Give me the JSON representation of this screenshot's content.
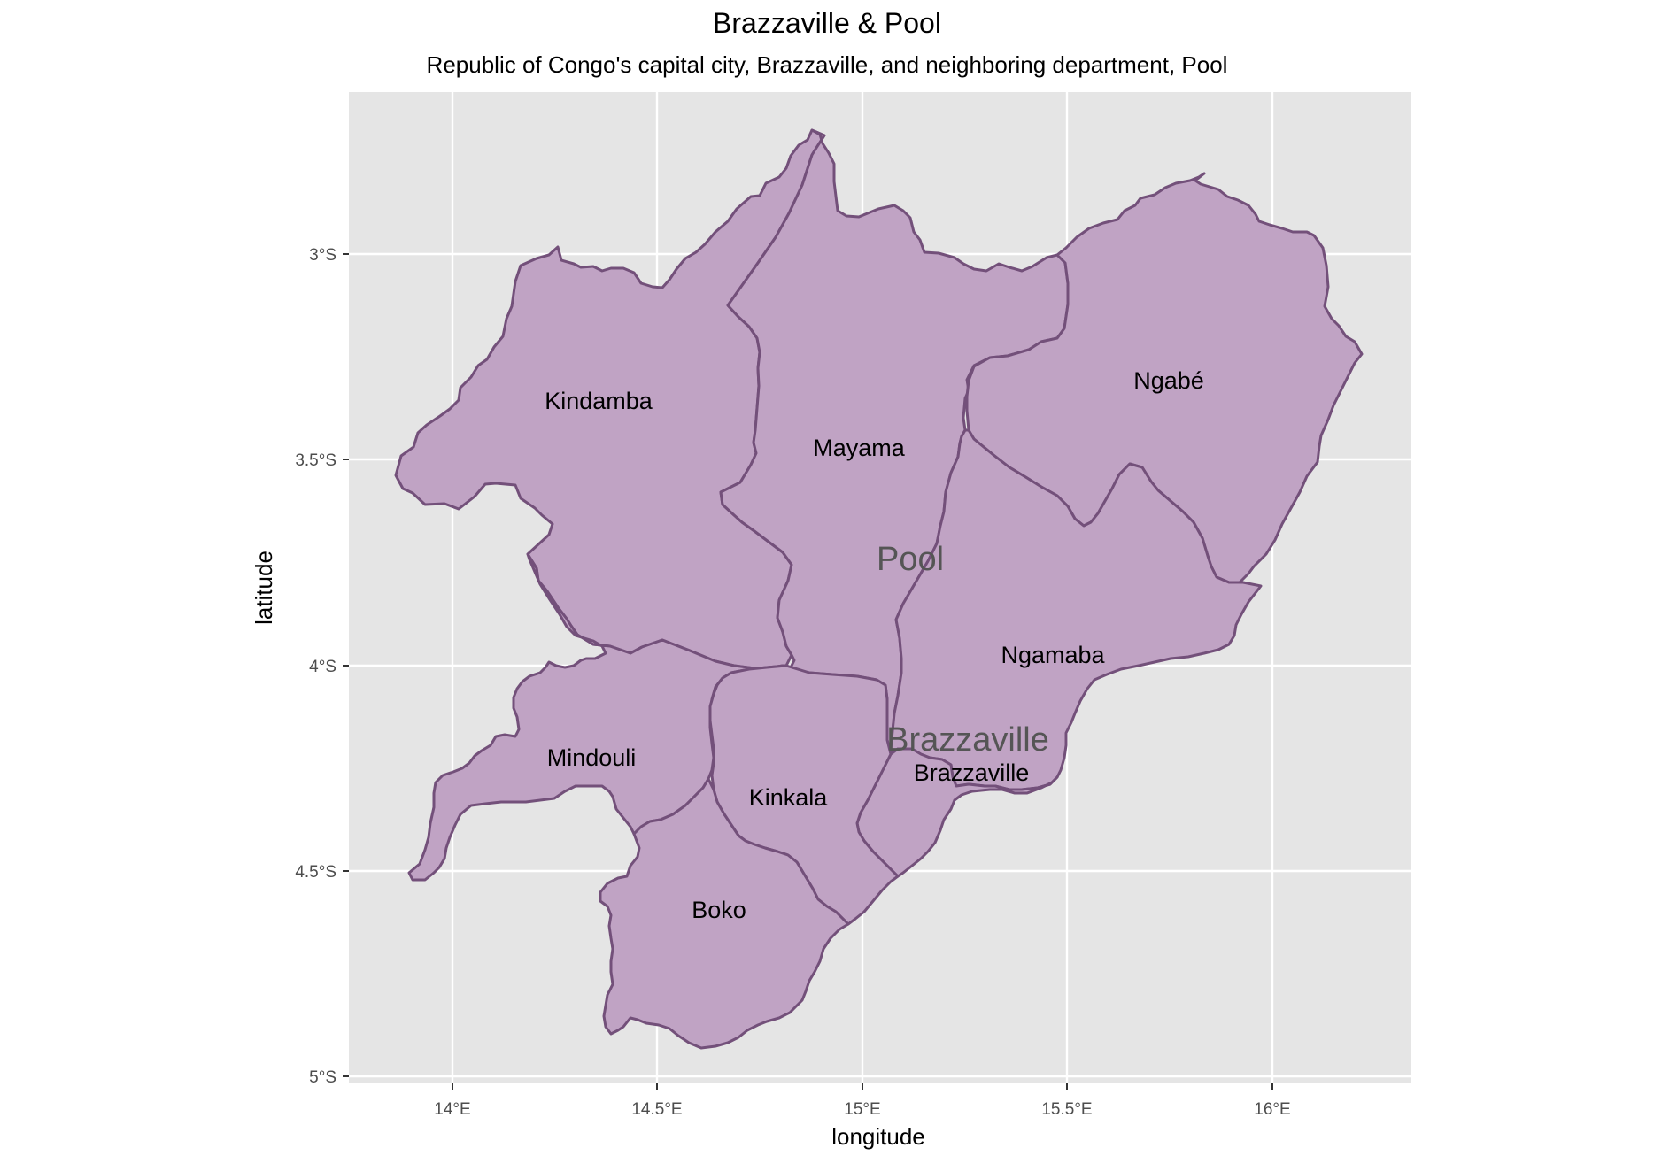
{
  "title": "Brazzaville & Pool",
  "subtitle": "Republic of Congo's capital city, Brazzaville, and neighboring department, Pool",
  "axes": {
    "xlabel": "longitude",
    "ylabel": "latitude",
    "x_ticks": [
      "14°E",
      "14.5°E",
      "15°E",
      "15.5°E",
      "16°E"
    ],
    "y_ticks": [
      "3°S",
      "3.5°S",
      "4°S",
      "4.5°S",
      "5°S"
    ]
  },
  "departments": {
    "pool": "Pool",
    "brazzaville": "Brazzaville"
  },
  "districts": {
    "kindamba": "Kindamba",
    "mayama": "Mayama",
    "ngabe": "Ngabé",
    "ngamaba": "Ngamaba",
    "mindouli": "Mindouli",
    "kinkala": "Kinkala",
    "boko": "Boko",
    "brazzaville": "Brazzaville"
  },
  "colors": {
    "panel_background": "#e5e5e5",
    "gridline": "#ffffff",
    "region_fill": "#c0a3c4",
    "region_border": "#73507a"
  },
  "chart_data": {
    "type": "map",
    "xlim": [
      13.75,
      16.35
    ],
    "ylim": [
      -5.02,
      -2.64
    ],
    "grid": true,
    "regions": [
      {
        "name": "Kindamba",
        "department": "Pool"
      },
      {
        "name": "Mayama",
        "department": "Pool"
      },
      {
        "name": "Ngabé",
        "department": "Pool"
      },
      {
        "name": "Ngamaba",
        "department": "Pool"
      },
      {
        "name": "Mindouli",
        "department": "Pool"
      },
      {
        "name": "Kinkala",
        "department": "Pool"
      },
      {
        "name": "Boko",
        "department": "Pool"
      },
      {
        "name": "Brazzaville",
        "department": "Brazzaville"
      }
    ]
  }
}
